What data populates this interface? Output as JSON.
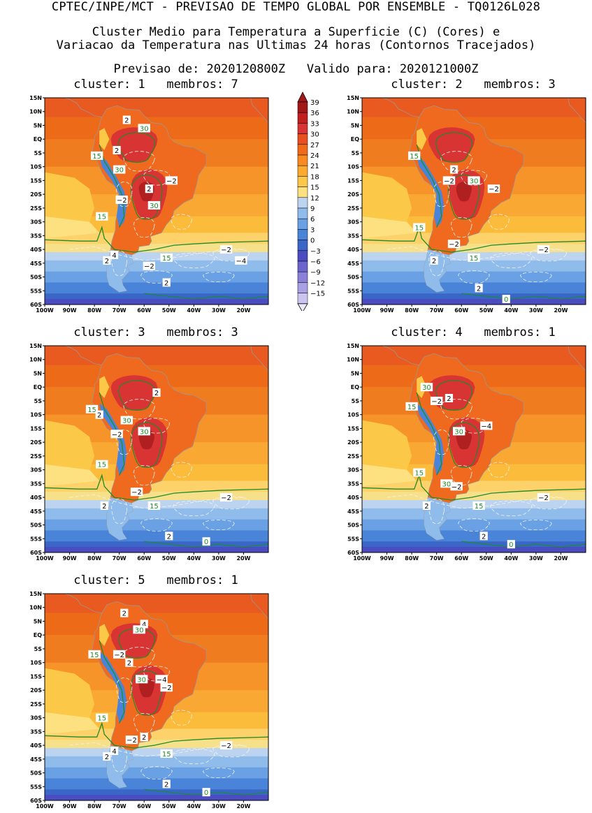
{
  "header": {
    "line1": "CPTEC/INPE/MCT - PREVISAO DE TEMPO GLOBAL POR ENSEMBLE - TQ0126L028",
    "line2": "Cluster Medio para Temperatura a Superficie (C) (Cores) e",
    "line3": "Variacao da Temperatura nas Ultimas 24 horas (Contornos Tracejados)",
    "line4": "Previsao de: 2020120800Z   Valido para: 2020121000Z"
  },
  "axes": {
    "lat_labels": [
      "15N",
      "10N",
      "5N",
      "EQ",
      "5S",
      "10S",
      "15S",
      "20S",
      "25S",
      "30S",
      "35S",
      "40S",
      "45S",
      "50S",
      "55S",
      "60S"
    ],
    "lon_labels": [
      "100W",
      "90W",
      "80W",
      "70W",
      "60W",
      "50W",
      "40W",
      "30W",
      "20W"
    ]
  },
  "colorbar": {
    "labels": [
      "39",
      "36",
      "33",
      "30",
      "27",
      "24",
      "21",
      "18",
      "15",
      "12",
      "9",
      "6",
      "3",
      "0",
      "-3",
      "-6",
      "-9",
      "-12",
      "-15"
    ],
    "colors": [
      "#a01818",
      "#c02020",
      "#d83434",
      "#e85020",
      "#f06a18",
      "#f88a20",
      "#fbaa30",
      "#fcc848",
      "#fde080",
      "#bcd4f0",
      "#90bcec",
      "#6aa0e4",
      "#4a84d8",
      "#3a66c8",
      "#4a4cc0",
      "#6a64cc",
      "#8a80d8",
      "#aaa0e4",
      "#ccc4f0"
    ]
  },
  "panels": [
    {
      "title": "cluster: 1   membros: 7",
      "labels": [
        {
          "t": "2",
          "lon": -67,
          "lat": 7
        },
        {
          "t": "30",
          "lon": -60,
          "lat": 4
        },
        {
          "t": "2",
          "lon": -71,
          "lat": -4
        },
        {
          "t": "15",
          "lon": -79,
          "lat": -6
        },
        {
          "t": "30",
          "lon": -70,
          "lat": -11
        },
        {
          "t": "2",
          "lon": -58,
          "lat": -18
        },
        {
          "t": "-2",
          "lon": -49,
          "lat": -15
        },
        {
          "t": "-2",
          "lon": -69,
          "lat": -22
        },
        {
          "t": "30",
          "lon": -56,
          "lat": -24
        },
        {
          "t": "15",
          "lon": -77,
          "lat": -28
        },
        {
          "t": "4",
          "lon": -72,
          "lat": -42
        },
        {
          "t": "2",
          "lon": -75,
          "lat": -44
        },
        {
          "t": "-2",
          "lon": -58,
          "lat": -46
        },
        {
          "t": "15",
          "lon": -51,
          "lat": -43
        },
        {
          "t": "-2",
          "lon": -27,
          "lat": -40
        },
        {
          "t": "-4",
          "lon": -21,
          "lat": -44
        },
        {
          "t": "2",
          "lon": -51,
          "lat": -52
        }
      ]
    },
    {
      "title": "cluster: 2   membros: 3",
      "labels": [
        {
          "t": "15",
          "lon": -79,
          "lat": -6
        },
        {
          "t": "2",
          "lon": -63,
          "lat": -11
        },
        {
          "t": "-2",
          "lon": -65,
          "lat": -15
        },
        {
          "t": "30",
          "lon": -55,
          "lat": -15
        },
        {
          "t": "-2",
          "lon": -47,
          "lat": -18
        },
        {
          "t": "15",
          "lon": -77,
          "lat": -32
        },
        {
          "t": "-2",
          "lon": -63,
          "lat": -38
        },
        {
          "t": "2",
          "lon": -71,
          "lat": -44
        },
        {
          "t": "15",
          "lon": -55,
          "lat": -43
        },
        {
          "t": "-2",
          "lon": -27,
          "lat": -40
        },
        {
          "t": "2",
          "lon": -53,
          "lat": -54
        },
        {
          "t": "0",
          "lon": -42,
          "lat": -58
        }
      ]
    },
    {
      "title": "cluster: 3   membros: 3",
      "labels": [
        {
          "t": "2",
          "lon": -55,
          "lat": -2
        },
        {
          "t": "15",
          "lon": -81,
          "lat": -8
        },
        {
          "t": "2",
          "lon": -78,
          "lat": -10
        },
        {
          "t": "30",
          "lon": -67,
          "lat": -12
        },
        {
          "t": "30",
          "lon": -60,
          "lat": -16
        },
        {
          "t": "-2",
          "lon": -71,
          "lat": -17
        },
        {
          "t": "15",
          "lon": -77,
          "lat": -28
        },
        {
          "t": "-2",
          "lon": -63,
          "lat": -38
        },
        {
          "t": "2",
          "lon": -76,
          "lat": -43
        },
        {
          "t": "15",
          "lon": -56,
          "lat": -43
        },
        {
          "t": "-2",
          "lon": -27,
          "lat": -40
        },
        {
          "t": "2",
          "lon": -50,
          "lat": -54
        },
        {
          "t": "0",
          "lon": -35,
          "lat": -56
        }
      ]
    },
    {
      "title": "cluster: 4   membros: 1",
      "labels": [
        {
          "t": "30",
          "lon": -74,
          "lat": 0
        },
        {
          "t": "2",
          "lon": -65,
          "lat": -4
        },
        {
          "t": "-2",
          "lon": -70,
          "lat": -5
        },
        {
          "t": "15",
          "lon": -80,
          "lat": -7
        },
        {
          "t": "-4",
          "lon": -50,
          "lat": -14
        },
        {
          "t": "30",
          "lon": -61,
          "lat": -16
        },
        {
          "t": "15",
          "lon": -77,
          "lat": -31
        },
        {
          "t": "30",
          "lon": -66,
          "lat": -35
        },
        {
          "t": "-2",
          "lon": -62,
          "lat": -36
        },
        {
          "t": "2",
          "lon": -74,
          "lat": -43
        },
        {
          "t": "15",
          "lon": -53,
          "lat": -43
        },
        {
          "t": "-2",
          "lon": -27,
          "lat": -40
        },
        {
          "t": "2",
          "lon": -51,
          "lat": -54
        },
        {
          "t": "0",
          "lon": -40,
          "lat": -57
        }
      ]
    },
    {
      "title": "cluster: 5   membros: 1",
      "labels": [
        {
          "t": "2",
          "lon": -68,
          "lat": 8
        },
        {
          "t": "4",
          "lon": -60,
          "lat": 4
        },
        {
          "t": "30",
          "lon": -62,
          "lat": 2
        },
        {
          "t": "15",
          "lon": -80,
          "lat": -7
        },
        {
          "t": "-2",
          "lon": -70,
          "lat": -7
        },
        {
          "t": "2",
          "lon": -66,
          "lat": -10
        },
        {
          "t": "30",
          "lon": -61,
          "lat": -16
        },
        {
          "t": "-4",
          "lon": -53,
          "lat": -16
        },
        {
          "t": "-2",
          "lon": -51,
          "lat": -19
        },
        {
          "t": "15",
          "lon": -77,
          "lat": -30
        },
        {
          "t": "-2",
          "lon": -65,
          "lat": -38
        },
        {
          "t": "2",
          "lon": -60,
          "lat": -37
        },
        {
          "t": "4",
          "lon": -72,
          "lat": -42
        },
        {
          "t": "2",
          "lon": -75,
          "lat": -44
        },
        {
          "t": "-2",
          "lon": -27,
          "lat": -40
        },
        {
          "t": "15",
          "lon": -51,
          "lat": -43
        },
        {
          "t": "2",
          "lon": -51,
          "lat": -54
        },
        {
          "t": "0",
          "lon": -35,
          "lat": -57
        }
      ]
    }
  ]
}
